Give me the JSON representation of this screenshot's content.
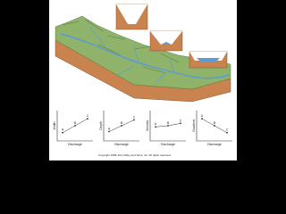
{
  "graphs": [
    {
      "y_label": "Width",
      "x_label": "Discharge",
      "points": [
        "A",
        "B",
        "C"
      ]
    },
    {
      "y_label": "Depth",
      "x_label": "Discharge",
      "points": [
        "A",
        "B",
        "C"
      ]
    },
    {
      "y_label": "Velocity",
      "x_label": "Discharge",
      "points": [
        "A",
        "B",
        "C"
      ]
    },
    {
      "y_label": "Gradient",
      "x_label": "Discharge",
      "points": [
        "A",
        "B",
        "C"
      ]
    }
  ],
  "copyright": "Copyright 1998 John Wiley and Sons, Inc. All rights reserved."
}
